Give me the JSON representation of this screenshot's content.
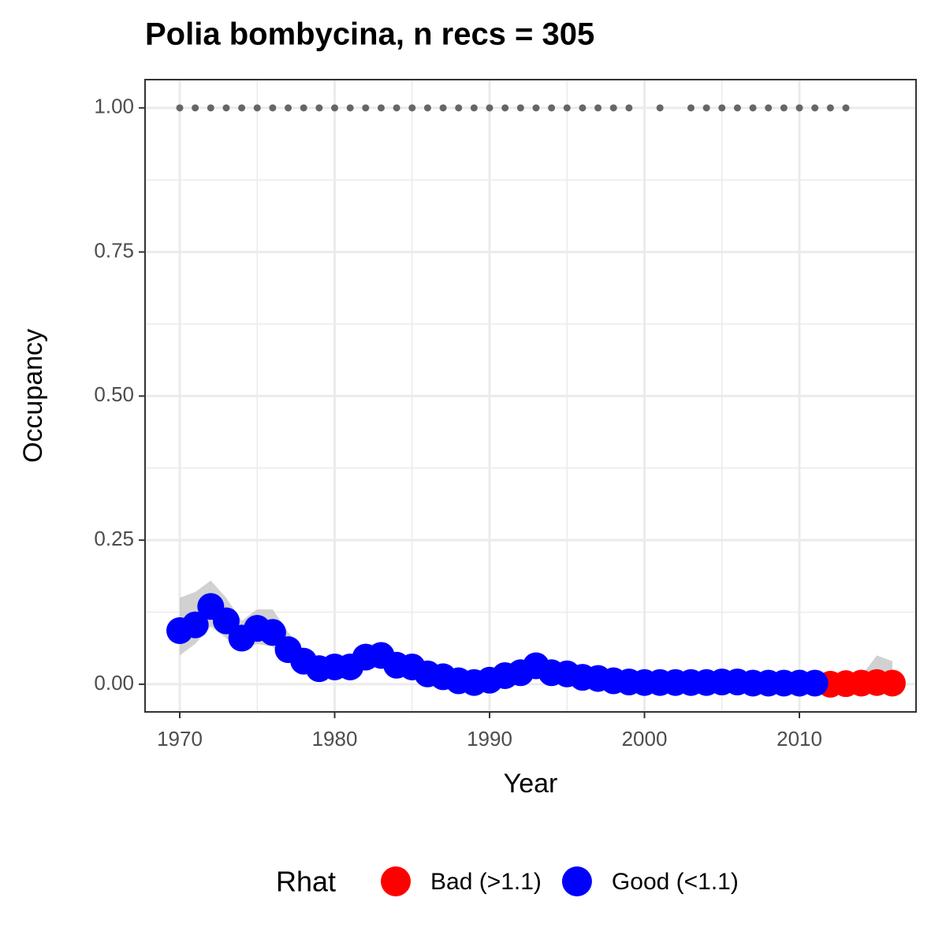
{
  "chart_data": {
    "type": "scatter",
    "title": "Polia bombycina, n recs = 305",
    "x_label": "Year",
    "y_label": "Occupancy",
    "legend_title": "Rhat",
    "legend_position": "bottom",
    "grid": true,
    "x": [
      1970,
      1971,
      1972,
      1973,
      1974,
      1975,
      1976,
      1977,
      1978,
      1979,
      1980,
      1981,
      1982,
      1983,
      1984,
      1985,
      1986,
      1987,
      1988,
      1989,
      1990,
      1991,
      1992,
      1993,
      1994,
      1995,
      1996,
      1997,
      1998,
      1999,
      2000,
      2001,
      2002,
      2003,
      2004,
      2005,
      2006,
      2007,
      2008,
      2009,
      2010,
      2011,
      2012,
      2013,
      2014,
      2015,
      2016
    ],
    "series": [
      {
        "name": "Bad (>1.1)",
        "color": "#ff0000",
        "values": [
          null,
          null,
          null,
          null,
          null,
          null,
          null,
          null,
          null,
          null,
          null,
          null,
          null,
          null,
          null,
          null,
          null,
          null,
          null,
          null,
          null,
          null,
          null,
          null,
          null,
          null,
          null,
          null,
          null,
          null,
          null,
          null,
          null,
          null,
          null,
          null,
          null,
          null,
          null,
          null,
          null,
          null,
          0.0,
          0.001,
          0.002,
          0.003,
          0.002
        ]
      },
      {
        "name": "Good (<1.1)",
        "color": "#0000ff",
        "values": [
          0.093,
          0.103,
          0.135,
          0.11,
          0.08,
          0.097,
          0.09,
          0.06,
          0.04,
          0.027,
          0.03,
          0.03,
          0.047,
          0.05,
          0.033,
          0.03,
          0.018,
          0.013,
          0.006,
          0.003,
          0.007,
          0.015,
          0.02,
          0.032,
          0.02,
          0.018,
          0.012,
          0.01,
          0.006,
          0.004,
          0.003,
          0.003,
          0.003,
          0.003,
          0.003,
          0.004,
          0.004,
          0.002,
          0.002,
          0.002,
          0.002,
          0.002,
          null,
          null,
          null,
          null,
          null
        ]
      }
    ],
    "ribbon": {
      "color": "#bdbdbd",
      "lower": [
        0.05,
        0.07,
        0.1,
        0.08,
        0.06,
        0.07,
        0.065,
        0.04,
        0.02,
        0.012,
        0.015,
        0.016,
        0.03,
        0.034,
        0.02,
        0.018,
        0.008,
        0.004,
        0.0,
        0.0,
        0.0,
        0.005,
        0.01,
        0.02,
        0.01,
        0.008,
        0.004,
        0.002,
        0.0,
        0.0,
        0.0,
        0.0,
        0.0,
        0.0,
        0.0,
        0.0,
        0.0,
        0.0,
        0.0,
        0.0,
        0.0,
        0.0,
        0.0,
        0.0,
        0.0,
        0.0,
        0.0
      ],
      "upper": [
        0.15,
        0.16,
        0.18,
        0.15,
        0.11,
        0.13,
        0.13,
        0.09,
        0.06,
        0.045,
        0.05,
        0.05,
        0.07,
        0.07,
        0.05,
        0.045,
        0.03,
        0.025,
        0.015,
        0.01,
        0.015,
        0.025,
        0.03,
        0.045,
        0.03,
        0.028,
        0.02,
        0.018,
        0.012,
        0.01,
        0.008,
        0.008,
        0.008,
        0.008,
        0.008,
        0.01,
        0.01,
        0.008,
        0.008,
        0.008,
        0.008,
        0.008,
        0.006,
        0.01,
        0.015,
        0.05,
        0.04
      ]
    },
    "detections": {
      "color": "#666666",
      "x": [
        1970,
        1971,
        1972,
        1973,
        1974,
        1975,
        1976,
        1977,
        1978,
        1979,
        1980,
        1981,
        1982,
        1983,
        1984,
        1985,
        1986,
        1987,
        1988,
        1989,
        1990,
        1991,
        1992,
        1993,
        1994,
        1995,
        1996,
        1997,
        1998,
        1999,
        2001,
        2003,
        2004,
        2005,
        2006,
        2007,
        2008,
        2009,
        2010,
        2011,
        2012,
        2013
      ],
      "values": [
        1,
        1,
        1,
        1,
        1,
        1,
        1,
        1,
        1,
        1,
        1,
        1,
        1,
        1,
        1,
        1,
        1,
        1,
        1,
        1,
        1,
        1,
        1,
        1,
        1,
        1,
        1,
        1,
        1,
        1,
        1,
        1,
        1,
        1,
        1,
        1,
        1,
        1,
        1,
        1,
        1,
        1
      ]
    },
    "xlim": [
      1967.76,
      2017.53
    ],
    "xticks": [
      1970,
      1980,
      1990,
      2000,
      2010
    ],
    "ylim": [
      -0.048,
      1.049
    ],
    "yticks": [
      {
        "value": 0,
        "label": "0.00"
      },
      {
        "value": 0.25,
        "label": "0.25"
      },
      {
        "value": 0.5,
        "label": "0.50"
      },
      {
        "value": 0.75,
        "label": "0.75"
      },
      {
        "value": 1,
        "label": "1.00"
      }
    ]
  }
}
